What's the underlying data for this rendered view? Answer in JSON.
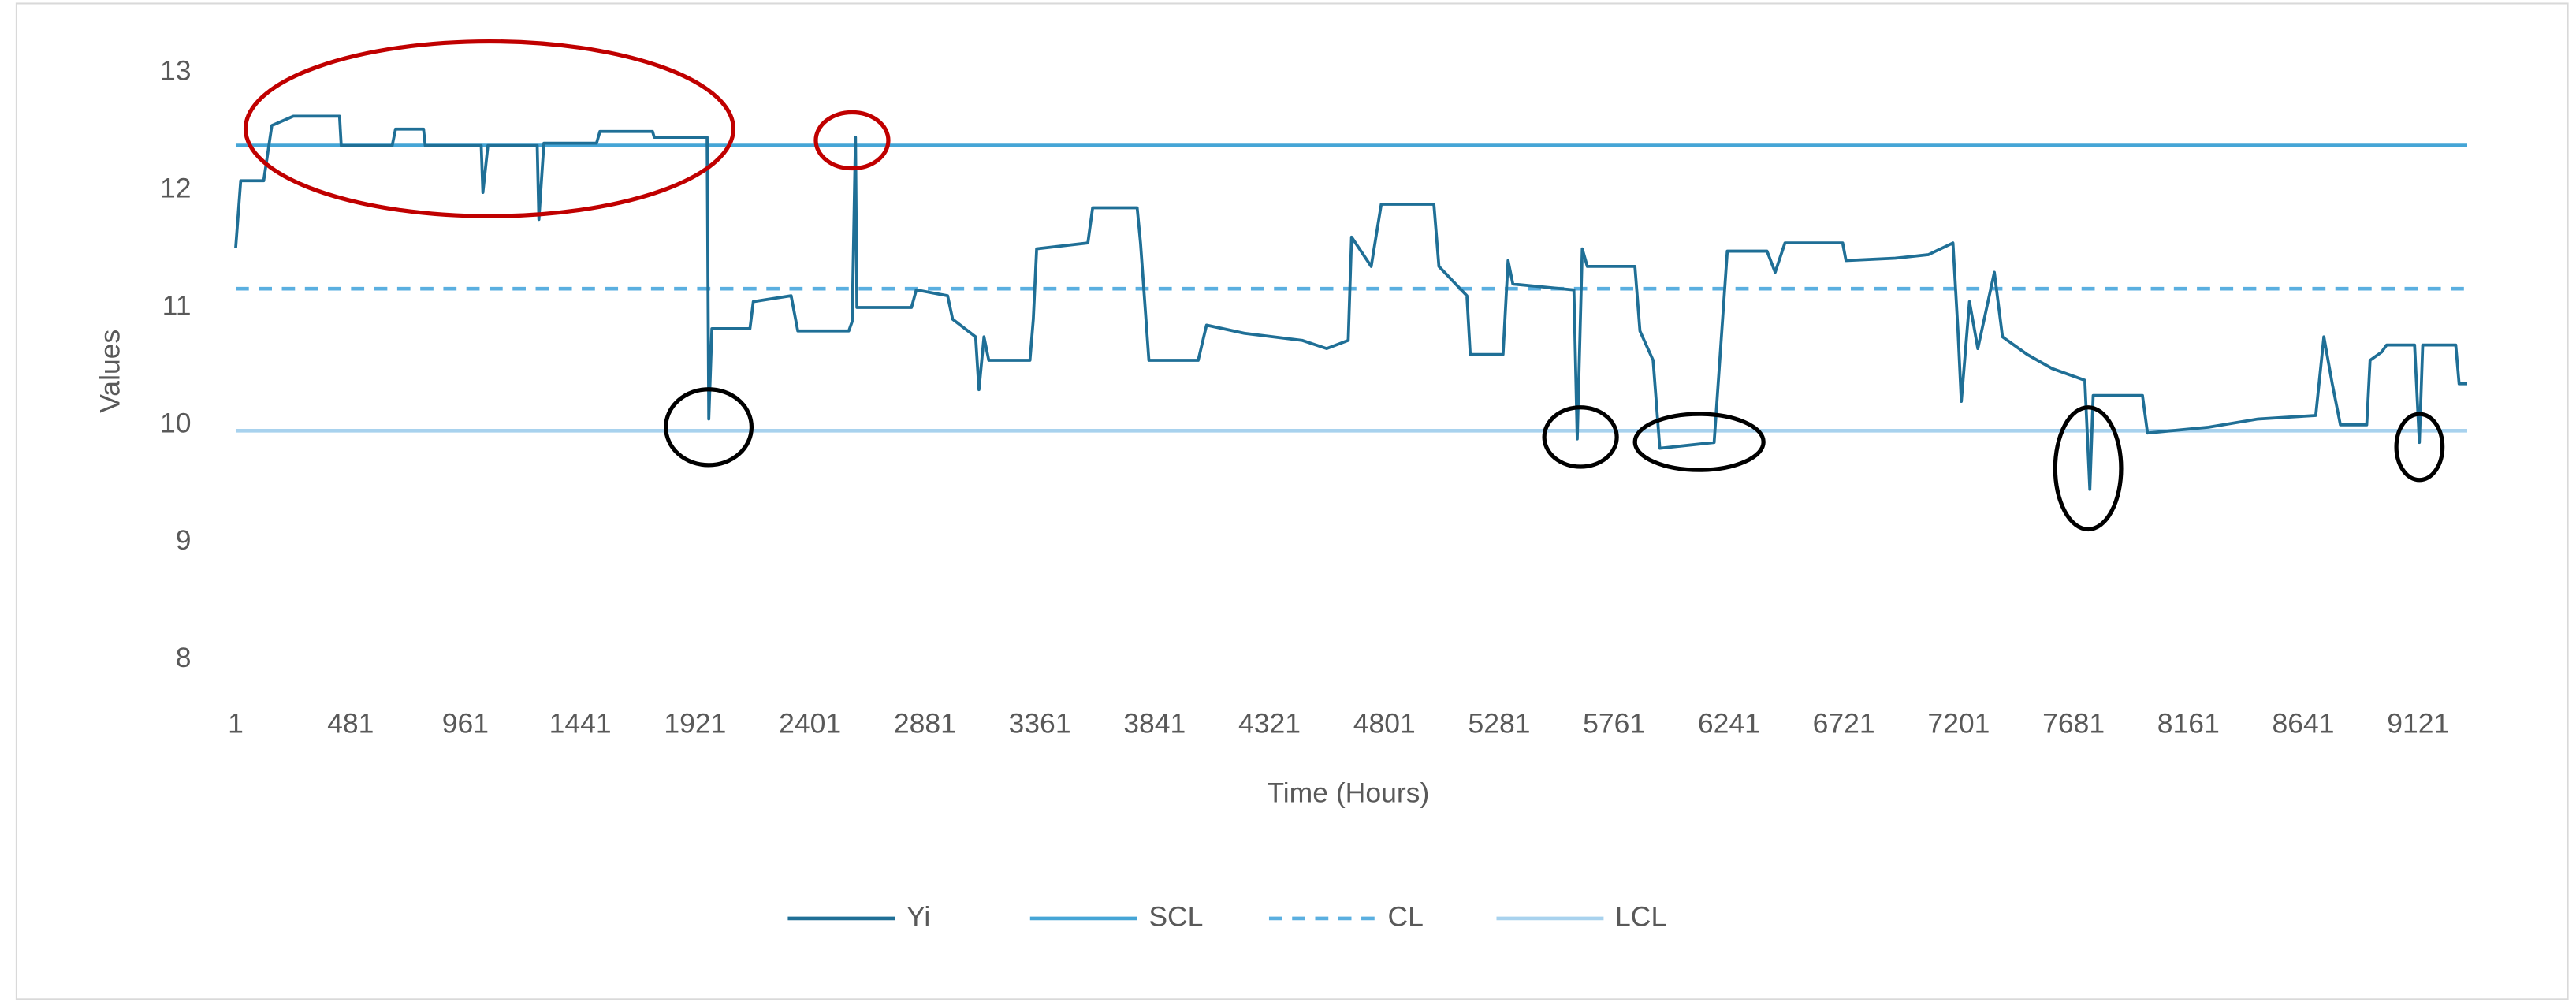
{
  "chart_data": {
    "type": "line",
    "xlabel": "Time (Hours)",
    "ylabel": "Values",
    "xlim": [
      1,
      9326
    ],
    "xticks": [
      1,
      481,
      961,
      1441,
      1921,
      2401,
      2881,
      3361,
      3841,
      4321,
      4801,
      5281,
      5761,
      6241,
      6721,
      7201,
      7681,
      8161,
      8641,
      9121
    ],
    "ylim": [
      8,
      13
    ],
    "yticks": [
      8,
      9,
      10,
      11,
      12,
      13
    ],
    "grid": false,
    "legend": "bottom",
    "series": [
      {
        "name": "Yi",
        "color": "#1f6f96",
        "x": [
          1,
          22,
          118,
          152,
          242,
          435,
          442,
          655,
          669,
          786,
          793,
          1027,
          1034,
          1055,
          1261,
          1268,
          1289,
          1509,
          1523,
          1743,
          1750,
          1971,
          1978,
          1991,
          2150,
          2164,
          2322,
          2350,
          2563,
          2577,
          2591,
          2597,
          2825,
          2845,
          2976,
          2997,
          3093,
          3107,
          3128,
          3148,
          3320,
          3334,
          3348,
          3562,
          3582,
          3768,
          3782,
          3817,
          4023,
          4058,
          4216,
          4457,
          4560,
          4650,
          4664,
          4746,
          4788,
          5008,
          5029,
          5146,
          5160,
          5297,
          5318,
          5338,
          5593,
          5607,
          5628,
          5649,
          5848,
          5869,
          5924,
          5952,
          6179,
          6234,
          6400,
          6434,
          6475,
          6716,
          6730,
          6936,
          7074,
          7177,
          7198,
          7212,
          7246,
          7281,
          7350,
          7384,
          7487,
          7591,
          7728,
          7749,
          7763,
          7969,
          7990,
          8245,
          8452,
          8693,
          8727,
          8762,
          8796,
          8906,
          8920,
          8968,
          8989,
          9106,
          9126,
          9140,
          9278,
          9292,
          9326
        ],
        "values": [
          11.51,
          12.08,
          12.08,
          12.55,
          12.63,
          12.63,
          12.38,
          12.38,
          12.52,
          12.52,
          12.38,
          12.38,
          11.98,
          12.38,
          12.38,
          11.75,
          12.4,
          12.4,
          12.5,
          12.5,
          12.45,
          12.45,
          10.05,
          10.82,
          10.82,
          11.05,
          11.1,
          10.8,
          10.8,
          10.88,
          12.45,
          11.0,
          11.0,
          11.15,
          11.1,
          10.9,
          10.75,
          10.3,
          10.75,
          10.55,
          10.55,
          10.9,
          11.5,
          11.55,
          11.85,
          11.85,
          11.55,
          10.55,
          10.55,
          10.85,
          10.78,
          10.72,
          10.65,
          10.72,
          11.6,
          11.35,
          11.88,
          11.88,
          11.35,
          11.1,
          10.6,
          10.6,
          11.4,
          11.2,
          11.15,
          9.88,
          11.5,
          11.35,
          11.35,
          10.8,
          10.55,
          9.8,
          9.85,
          11.48,
          11.48,
          11.3,
          11.55,
          11.55,
          11.4,
          11.42,
          11.45,
          11.55,
          10.8,
          10.2,
          11.05,
          10.65,
          11.3,
          10.75,
          10.6,
          10.48,
          10.38,
          9.45,
          10.25,
          10.25,
          9.93,
          9.98,
          10.05,
          10.08,
          10.75,
          10.35,
          10.0,
          10.0,
          10.55,
          10.62,
          10.68,
          10.68,
          9.85,
          10.68,
          10.68,
          10.35,
          10.35
        ]
      },
      {
        "name": "SCL",
        "color": "#45a5d6",
        "x": [
          1,
          9326
        ],
        "values": [
          12.38,
          12.38
        ]
      },
      {
        "name": "CL",
        "color": "#5aafe0",
        "dash": "dashed",
        "x": [
          1,
          9326
        ],
        "values": [
          11.16,
          11.16
        ]
      },
      {
        "name": "LCL",
        "color": "#a8d2ee",
        "x": [
          1,
          9326
        ],
        "values": [
          9.95,
          9.95
        ]
      }
    ]
  }
}
